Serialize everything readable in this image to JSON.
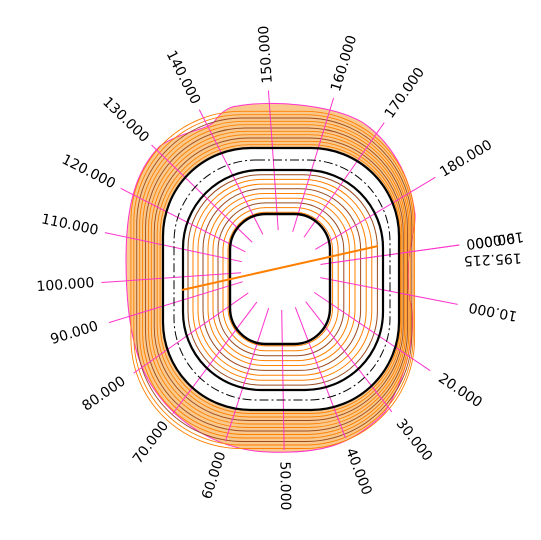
{
  "stations": [
    {
      "label": "0.000",
      "angle": -8
    },
    {
      "label": "10.000",
      "angle": 11
    },
    {
      "label": "20.000",
      "angle": 34
    },
    {
      "label": "30.000",
      "angle": 52
    },
    {
      "label": "40.000",
      "angle": 69
    },
    {
      "label": "50.000",
      "angle": 89
    },
    {
      "label": "60.000",
      "angle": 108
    },
    {
      "label": "70.000",
      "angle": 127
    },
    {
      "label": "80.000",
      "angle": 145
    },
    {
      "label": "90.000",
      "angle": 163
    },
    {
      "label": "100.000",
      "angle": 176
    },
    {
      "label": "110.000",
      "angle": 192
    },
    {
      "label": "120.000",
      "angle": 207
    },
    {
      "label": "130.000",
      "angle": 224
    },
    {
      "label": "140.000",
      "angle": 243
    },
    {
      "label": "150.000",
      "angle": 266
    },
    {
      "label": "160.000",
      "angle": 287
    },
    {
      "label": "170.000",
      "angle": 305
    },
    {
      "label": "180.000",
      "angle": 329
    },
    {
      "label": "190.000",
      "angle": 352
    },
    {
      "label": "195.215",
      "angle": -3
    }
  ],
  "colors": {
    "ray": "#ff33cc",
    "contour_orange": "#ff8000",
    "contour_brown": "#9a4a1e",
    "outer_fill": "#f9c98e",
    "outline": "#000000"
  }
}
